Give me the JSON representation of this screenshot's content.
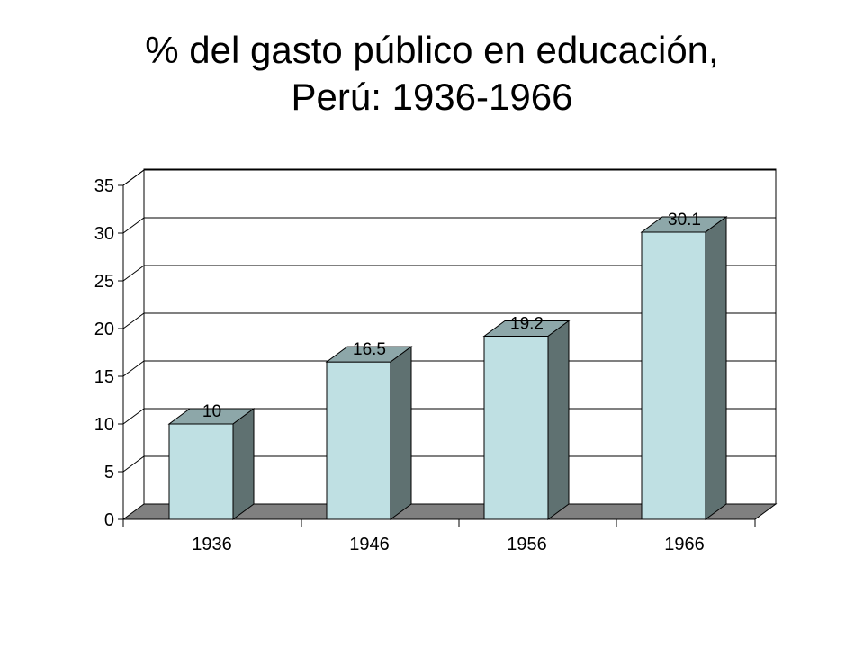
{
  "title": {
    "line1": "% del gasto público en educación,",
    "line2": "Perú: 1936-1966"
  },
  "chart_data": {
    "type": "bar",
    "style": "3d",
    "categories": [
      "1936",
      "1946",
      "1956",
      "1966"
    ],
    "series": [
      {
        "values": [
          10,
          16.5,
          19.2,
          30.1
        ]
      }
    ],
    "data_labels": [
      "10",
      "16.5",
      "19.2",
      "30.1"
    ],
    "ylim": [
      0,
      35
    ],
    "yticks": [
      0,
      5,
      10,
      15,
      20,
      25,
      30,
      35
    ],
    "grid": true,
    "legend": "none",
    "colors": {
      "bar_front": "#bfe0e3",
      "bar_top": "#8da7a9",
      "bar_side": "#5f7171",
      "floor": "#808080",
      "gridline": "#000000"
    }
  }
}
